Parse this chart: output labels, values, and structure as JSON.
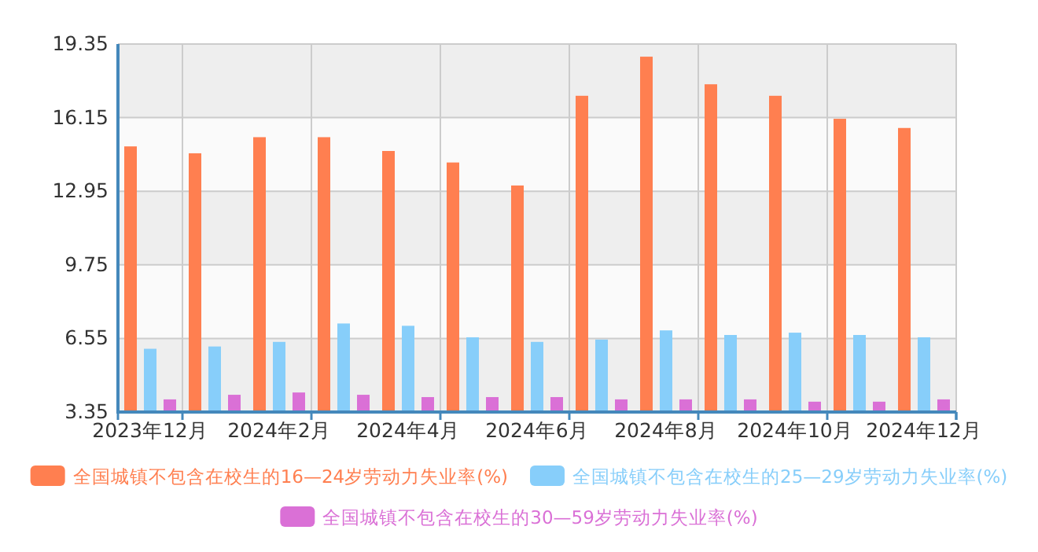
{
  "chart_data": {
    "type": "bar",
    "categories": [
      "2023年12月",
      null,
      "2024年2月",
      null,
      "2024年4月",
      null,
      "2024年6月",
      null,
      "2024年8月",
      null,
      "2024年10月",
      null,
      "2024年12月"
    ],
    "series": [
      {
        "name": "全国城镇不包含在校生的16—24岁劳动力失业率(%)",
        "color": "#ff7f50",
        "values": [
          14.9,
          14.6,
          15.3,
          15.3,
          14.7,
          14.2,
          13.2,
          17.1,
          18.8,
          17.6,
          17.1,
          16.1,
          15.7
        ]
      },
      {
        "name": "全国城镇不包含在校生的25—29岁劳动力失业率(%)",
        "color": "#87cefa",
        "values": [
          6.1,
          6.2,
          6.4,
          7.2,
          7.1,
          6.6,
          6.4,
          6.5,
          6.9,
          6.7,
          6.8,
          6.7,
          6.6
        ]
      },
      {
        "name": "全国城镇不包含在校生的30—59岁劳动力失业率(%)",
        "color": "#da70d6",
        "values": [
          3.9,
          4.1,
          4.2,
          4.1,
          4.0,
          4.0,
          4.0,
          3.9,
          3.9,
          3.9,
          3.8,
          3.8,
          3.9
        ]
      }
    ],
    "ylim": [
      3.35,
      19.35
    ],
    "yticks": [
      3.35,
      6.55,
      9.75,
      12.95,
      16.15,
      19.35
    ],
    "grid": true,
    "legend": "bottom"
  }
}
